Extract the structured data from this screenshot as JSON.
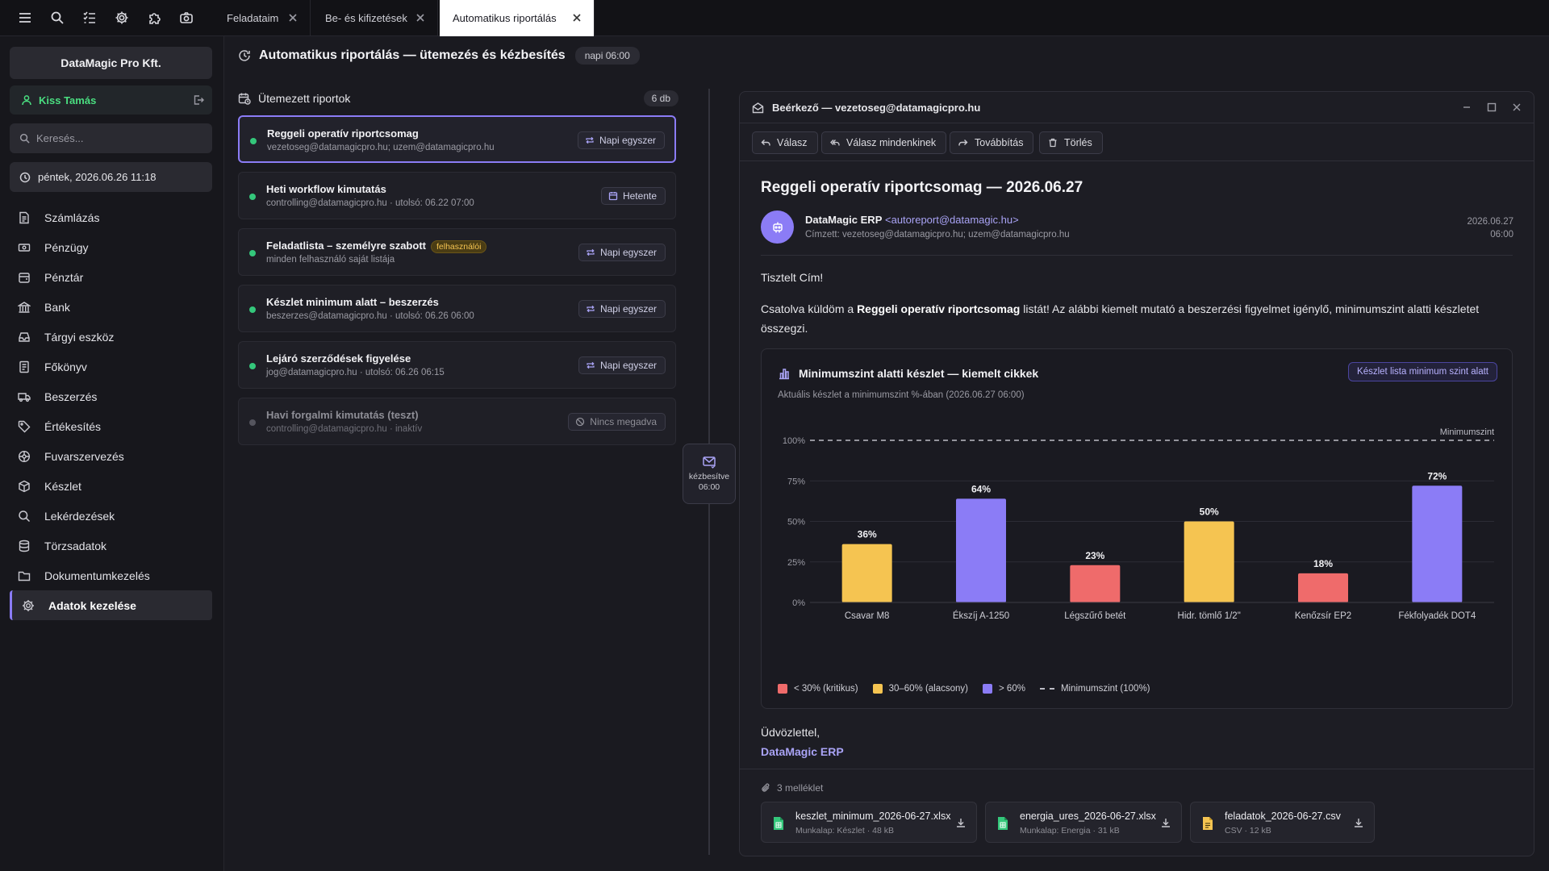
{
  "topbar": {
    "icons": [
      "menu-icon",
      "search-icon",
      "checklist-icon",
      "gear-icon",
      "puzzle-icon",
      "camera-icon"
    ],
    "tabs": [
      {
        "label": "Feladataim",
        "active": false
      },
      {
        "label": "Be- és kifizetések",
        "active": false
      },
      {
        "label": "Automatikus riportálás",
        "active": true
      }
    ]
  },
  "sidebar": {
    "company": "DataMagic Pro Kft.",
    "user": "Kiss Tamás",
    "search_placeholder": "Keresés...",
    "datetime": "péntek, 2026.06.26 11:18",
    "items": [
      {
        "label": "Számlázás",
        "icon": "invoice-icon"
      },
      {
        "label": "Pénzügy",
        "icon": "money-icon"
      },
      {
        "label": "Pénztár",
        "icon": "cashbox-icon"
      },
      {
        "label": "Bank",
        "icon": "bank-icon"
      },
      {
        "label": "Tárgyi eszköz",
        "icon": "asset-icon"
      },
      {
        "label": "Főkönyv",
        "icon": "ledger-icon"
      },
      {
        "label": "Beszerzés",
        "icon": "truck-icon"
      },
      {
        "label": "Értékesítés",
        "icon": "tag-icon"
      },
      {
        "label": "Fuvarszervezés",
        "icon": "wheel-icon"
      },
      {
        "label": "Készlet",
        "icon": "box-icon"
      },
      {
        "label": "Lekérdezések",
        "icon": "query-icon"
      },
      {
        "label": "Törzsadatok",
        "icon": "database-icon"
      },
      {
        "label": "Dokumentumkezelés",
        "icon": "document-icon"
      },
      {
        "label": "Adatok kezelése",
        "icon": "gear-icon",
        "active": true
      }
    ]
  },
  "header": {
    "title": "Automatikus riportálás — ütemezés és kézbesítés",
    "badge": "napi 06:00"
  },
  "reports": {
    "title": "Ütemezett riportok",
    "count": "6 db",
    "items": [
      {
        "title": "Reggeli operatív riportcsomag",
        "sub": "vezetoseg@datamagicpro.hu; uzem@datamagicpro.hu",
        "freq": "Napi egyszer",
        "active": true,
        "selected": true,
        "badge": ""
      },
      {
        "title": "Heti workflow kimutatás",
        "sub": "controlling@datamagicpro.hu · utolsó: 06.22 07:00",
        "freq": "Hetente",
        "active": true,
        "badge": ""
      },
      {
        "title": "Feladatlista – személyre szabott",
        "sub": "minden felhasználó saját listája",
        "freq": "Napi egyszer",
        "active": true,
        "badge": "felhasználói"
      },
      {
        "title": "Készlet minimum alatt – beszerzés",
        "sub": "beszerzes@datamagicpro.hu · utolsó: 06.26 06:00",
        "freq": "Napi egyszer",
        "active": true,
        "badge": ""
      },
      {
        "title": "Lejáró szerződések figyelése",
        "sub": "jog@datamagicpro.hu · utolsó: 06.26 06:15",
        "freq": "Napi egyszer",
        "active": true,
        "badge": ""
      },
      {
        "title": "Havi forgalmi kimutatás (teszt)",
        "sub": "controlling@datamagicpro.hu · inaktív",
        "freq": "Nincs megadva",
        "active": false,
        "badge": ""
      }
    ]
  },
  "delivery": {
    "line1": "kézbesítve",
    "line2": "06:00"
  },
  "email": {
    "window_title": "Beérkező — vezetoseg@datamagicpro.hu",
    "toolbar": {
      "reply": "Válasz",
      "reply_all": "Válasz mindenkinek",
      "forward": "Továbbítás",
      "delete": "Törlés"
    },
    "subject": "Reggeli operatív riportcsomag — 2026.06.27",
    "sender_name": "DataMagic ERP",
    "sender_addr": "<autoreport@datamagic.hu>",
    "recipients": "Címzett: vezetoseg@datamagicpro.hu; uzem@datamagicpro.hu",
    "date": "2026.06.27",
    "time": "06:00",
    "greeting": "Tisztelt Cím!",
    "intro_pre": "Csatolva küldöm a ",
    "intro_bold": "Reggeli operatív riportcsomag",
    "intro_post": " listát! Az alábbi kiemelt mutató a beszerzési figyelmet igénylő, minimumszint alatti készletet összegzi.",
    "regards": "Üdvözlettel,",
    "signature": "DataMagic ERP",
    "attachments_label": "3 melléklet",
    "attachments": [
      {
        "name": "keszlet_minimum_2026-06-27.xlsx",
        "meta": "Munkalap: Készlet · 48 kB",
        "color": "#34c77b"
      },
      {
        "name": "energia_ures_2026-06-27.xlsx",
        "meta": "Munkalap: Energia · 31 kB",
        "color": "#34c77b"
      },
      {
        "name": "feladatok_2026-06-27.csv",
        "meta": "CSV · 12 kB",
        "color": "#f5c451"
      }
    ]
  },
  "chart": {
    "title": "Minimumszint alatti készlet — kiemelt cikkek",
    "subtitle": "Aktuális készlet a minimumszint %-ában (2026.06.27 06:00)",
    "link": "Készlet lista minimum szint alatt",
    "legend": {
      "critical": "< 30% (kritikus)",
      "low": "30–60% (alacsony)",
      "ok": "> 60%",
      "min": "Minimumszint (100%)"
    }
  },
  "chart_data": {
    "type": "bar",
    "title": "Minimumszint alatti készlet — kiemelt cikkek",
    "subtitle": "Aktuális készlet a minimumszint %-ában (2026.06.27 06:00)",
    "categories": [
      "Csavar M8",
      "Ékszíj A-1250",
      "Légszűrő betét",
      "Hidr. tömlő 1/2\"",
      "Kenőzsír EP2",
      "Fékfolyadék DOT4"
    ],
    "values": [
      36,
      64,
      23,
      50,
      18,
      72
    ],
    "value_labels": [
      "36%",
      "64%",
      "23%",
      "50%",
      "18%",
      "72%"
    ],
    "yticks": [
      "0%",
      "25%",
      "50%",
      "75%",
      "100%"
    ],
    "ylim": [
      0,
      100
    ],
    "reference_line": {
      "value": 100,
      "label": "Minimumszint"
    },
    "colors": {
      "critical": "#ef6b6b",
      "low": "#f5c451",
      "ok": "#8b7cf6"
    },
    "grid": true
  }
}
